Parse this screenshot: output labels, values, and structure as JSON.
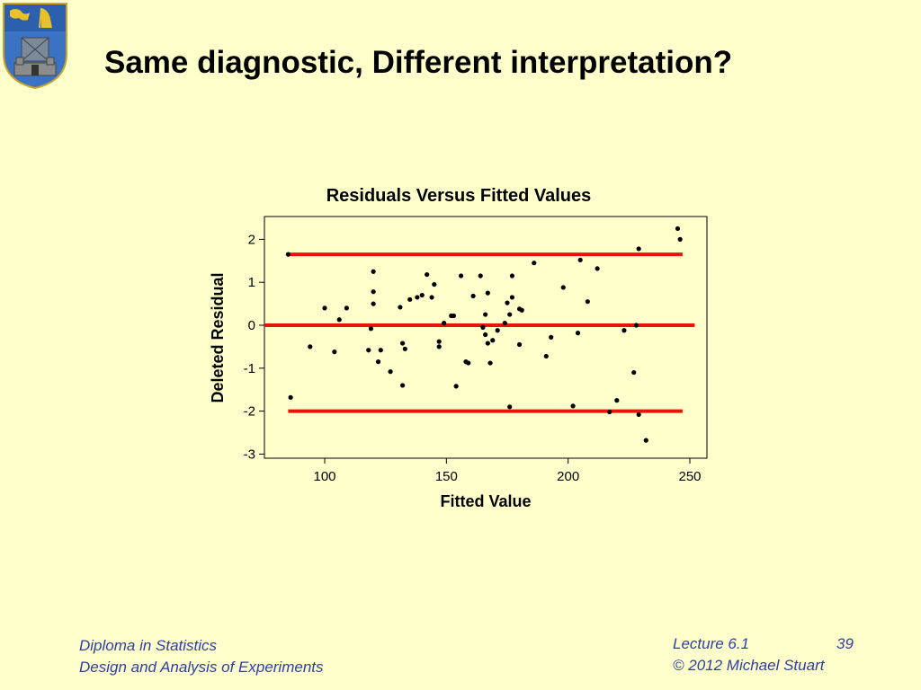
{
  "slide": {
    "title": "Same diagnostic, Different interpretation?"
  },
  "footer": {
    "left_line1": "Diploma in Statistics",
    "left_line2": "Design and Analysis of Experiments",
    "lecture": "Lecture 6.1",
    "page": "39",
    "copyright": "© 2012 Michael Stuart"
  },
  "colors": {
    "background": "#FFFFCC",
    "footer_text": "#2E3F9E",
    "reference_lines": "#E8140C",
    "points": "#000000"
  },
  "chart_data": {
    "type": "scatter",
    "title": "Residuals Versus Fitted Values",
    "xlabel": "Fitted Value",
    "ylabel": "Deleted Residual",
    "xlim": [
      75,
      252
    ],
    "ylim": [
      -3.1,
      2.5
    ],
    "xticks": [
      100,
      150,
      200,
      250
    ],
    "yticks": [
      2,
      1,
      0,
      -1,
      -2,
      -3
    ],
    "grid": false,
    "reference_lines": [
      {
        "y": 1.65,
        "x_start": 85,
        "x_end": 247
      },
      {
        "y": 0,
        "x_start": 75,
        "x_end": 252
      },
      {
        "y": -2.0,
        "x_start": 85,
        "x_end": 247
      }
    ],
    "points": [
      {
        "x": 85,
        "y": 1.65
      },
      {
        "x": 86,
        "y": -1.68
      },
      {
        "x": 94,
        "y": -0.5
      },
      {
        "x": 100,
        "y": 0.4
      },
      {
        "x": 104,
        "y": -0.62
      },
      {
        "x": 106,
        "y": 0.13
      },
      {
        "x": 109,
        "y": 0.4
      },
      {
        "x": 118,
        "y": -0.58
      },
      {
        "x": 119,
        "y": -0.08
      },
      {
        "x": 120,
        "y": 1.25
      },
      {
        "x": 120,
        "y": 0.78
      },
      {
        "x": 120,
        "y": 0.5
      },
      {
        "x": 122,
        "y": -0.85
      },
      {
        "x": 123,
        "y": -0.58
      },
      {
        "x": 127,
        "y": -1.08
      },
      {
        "x": 131,
        "y": 0.42
      },
      {
        "x": 132,
        "y": -0.42
      },
      {
        "x": 132,
        "y": -1.4
      },
      {
        "x": 133,
        "y": -0.55
      },
      {
        "x": 135,
        "y": 0.6
      },
      {
        "x": 138,
        "y": 0.65
      },
      {
        "x": 140,
        "y": 0.7
      },
      {
        "x": 142,
        "y": 1.18
      },
      {
        "x": 144,
        "y": 0.65
      },
      {
        "x": 145,
        "y": 0.95
      },
      {
        "x": 147,
        "y": -0.38
      },
      {
        "x": 147,
        "y": -0.5
      },
      {
        "x": 149,
        "y": 0.05
      },
      {
        "x": 152,
        "y": 0.22
      },
      {
        "x": 153,
        "y": 0.22
      },
      {
        "x": 154,
        "y": -1.42
      },
      {
        "x": 156,
        "y": 1.15
      },
      {
        "x": 158,
        "y": -0.85
      },
      {
        "x": 159,
        "y": -0.88
      },
      {
        "x": 161,
        "y": 0.68
      },
      {
        "x": 164,
        "y": 1.15
      },
      {
        "x": 165,
        "y": -0.05
      },
      {
        "x": 166,
        "y": 0.25
      },
      {
        "x": 166,
        "y": -0.22
      },
      {
        "x": 167,
        "y": -0.42
      },
      {
        "x": 167,
        "y": 0.75
      },
      {
        "x": 168,
        "y": -0.88
      },
      {
        "x": 169,
        "y": -0.35
      },
      {
        "x": 171,
        "y": -0.12
      },
      {
        "x": 174,
        "y": 0.05
      },
      {
        "x": 175,
        "y": 0.52
      },
      {
        "x": 176,
        "y": -1.9
      },
      {
        "x": 176,
        "y": 0.25
      },
      {
        "x": 177,
        "y": 1.15
      },
      {
        "x": 177,
        "y": 0.65
      },
      {
        "x": 180,
        "y": -0.45
      },
      {
        "x": 180,
        "y": 0.38
      },
      {
        "x": 181,
        "y": 0.35
      },
      {
        "x": 186,
        "y": 1.45
      },
      {
        "x": 191,
        "y": -0.72
      },
      {
        "x": 193,
        "y": -0.28
      },
      {
        "x": 198,
        "y": 0.88
      },
      {
        "x": 202,
        "y": -1.88
      },
      {
        "x": 204,
        "y": -0.18
      },
      {
        "x": 205,
        "y": 1.52
      },
      {
        "x": 208,
        "y": 0.55
      },
      {
        "x": 212,
        "y": 1.32
      },
      {
        "x": 217,
        "y": -2.02
      },
      {
        "x": 220,
        "y": -1.75
      },
      {
        "x": 223,
        "y": -0.12
      },
      {
        "x": 227,
        "y": -1.1
      },
      {
        "x": 228,
        "y": 0.0
      },
      {
        "x": 229,
        "y": -2.08
      },
      {
        "x": 229,
        "y": 1.78
      },
      {
        "x": 232,
        "y": -2.68
      },
      {
        "x": 245,
        "y": 2.25
      },
      {
        "x": 246,
        "y": 2.0
      }
    ]
  }
}
